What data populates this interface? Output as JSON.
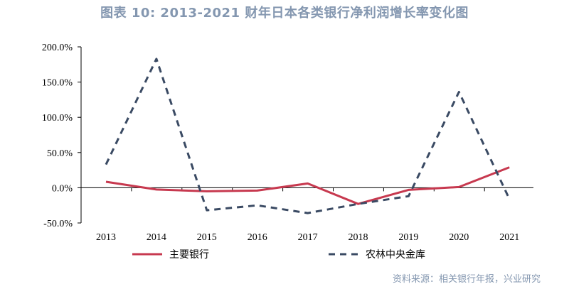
{
  "title": "图表 10: 2013-2021 财年日本各类银行净利润增长率变化图",
  "source": "资料来源：相关银行年报，兴业研究",
  "chart_data": {
    "type": "line",
    "title": "图表 10: 2013-2021 财年日本各类银行净利润增长率变化图",
    "categories": [
      "2013",
      "2014",
      "2015",
      "2016",
      "2017",
      "2018",
      "2019",
      "2020",
      "2021"
    ],
    "ylim": [
      -50,
      200
    ],
    "yticks": [
      -50,
      0,
      50,
      100,
      150,
      200
    ],
    "ytick_labels": [
      "-50.0%",
      "0.0%",
      "50.0%",
      "100.0%",
      "150.0%",
      "200.0%"
    ],
    "grid": false,
    "legend_position": "bottom",
    "series": [
      {
        "name": "主要银行",
        "color": "#c7394f",
        "style": "solid",
        "values": [
          8.5,
          -2.5,
          -5,
          -4,
          6,
          -23,
          -3,
          1,
          29
        ]
      },
      {
        "name": "农林中央金库",
        "color": "#3a4a63",
        "style": "dashed",
        "values": [
          33,
          183,
          -32,
          -25,
          -36,
          -23,
          -12,
          136,
          -16
        ]
      }
    ]
  }
}
